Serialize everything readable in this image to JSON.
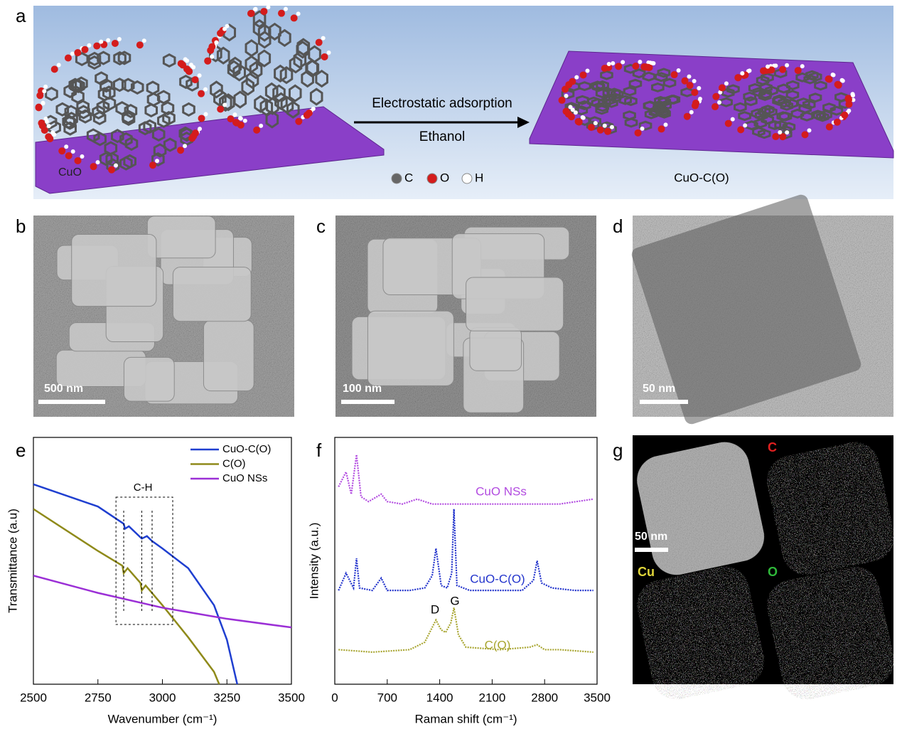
{
  "panels": [
    "a",
    "b",
    "c",
    "d",
    "e",
    "f",
    "g"
  ],
  "schematic": {
    "substrate_label": "CuO",
    "arrow_top": "Electrostatic adsorption",
    "arrow_bottom": "Ethanol",
    "atoms": [
      "C",
      "O",
      "H"
    ],
    "product_label": "CuO-C(O)"
  },
  "micrographs": [
    {
      "scale_bar": "500 nm"
    },
    {
      "scale_bar": "100 nm"
    },
    {
      "scale_bar": "50 nm"
    }
  ],
  "mapping": {
    "scale_bar": "50 nm",
    "elements": [
      "C",
      "Cu",
      "O"
    ]
  },
  "chart_data": [
    {
      "type": "line",
      "xlabel": "Wavenumber (cm⁻¹)",
      "ylabel": "Transmittance (a.u)",
      "xlim": [
        2500,
        3500
      ],
      "xticks": [
        2500,
        2750,
        3000,
        3250,
        3500
      ],
      "ylim": [
        0,
        100
      ],
      "annotation": {
        "text": "C-H",
        "range": [
          2820,
          3040
        ],
        "bands": [
          2850,
          2920,
          2960
        ]
      },
      "series": [
        {
          "name": "CuO-C(O)",
          "color": "#1f3fd0",
          "x": [
            2500,
            2750,
            2850,
            2855,
            2870,
            2920,
            2940,
            2960,
            3000,
            3100,
            3200,
            3250,
            3290
          ],
          "values": [
            81,
            72,
            65,
            63,
            64,
            59,
            60,
            58,
            55,
            47,
            32,
            18,
            0
          ]
        },
        {
          "name": "C(O)",
          "color": "#8f8a1a",
          "x": [
            2500,
            2750,
            2845,
            2850,
            2865,
            2915,
            2920,
            2935,
            3000,
            3100,
            3200,
            3220
          ],
          "values": [
            71,
            54,
            48,
            45,
            47,
            41,
            38,
            40,
            32,
            19,
            5,
            0
          ]
        },
        {
          "name": "CuO NSs",
          "color": "#9b2fd6",
          "x": [
            2500,
            2750,
            3000,
            3250,
            3500
          ],
          "values": [
            44,
            37,
            31,
            26.5,
            23
          ]
        }
      ]
    },
    {
      "type": "line",
      "xlabel": "Raman shift (cm⁻¹)",
      "ylabel": "Intensity (a.u.)",
      "xlim": [
        0,
        3500
      ],
      "xticks": [
        0,
        700,
        1400,
        2100,
        2800,
        3500
      ],
      "ylim": [
        0,
        100
      ],
      "peak_labels": [
        "D",
        "G"
      ],
      "series": [
        {
          "name": "CuO NSs",
          "color": "#b24be0",
          "x": [
            50,
            150,
            220,
            290,
            350,
            450,
            620,
            700,
            900,
            1100,
            1300,
            2000,
            3000,
            3450
          ],
          "values": [
            80,
            86,
            77,
            93,
            76,
            74,
            77,
            74,
            73,
            75,
            73,
            73,
            73,
            75
          ]
        },
        {
          "name": "CuO-C(O)",
          "color": "#2233cc",
          "x": [
            50,
            150,
            250,
            290,
            330,
            500,
            620,
            700,
            1000,
            1200,
            1300,
            1350,
            1420,
            1500,
            1560,
            1590,
            1630,
            1800,
            2500,
            2650,
            2700,
            2760,
            2900,
            3200,
            3450
          ],
          "values": [
            38,
            45,
            39,
            51,
            39,
            38,
            43,
            38,
            38,
            39,
            44,
            55,
            40,
            39,
            45,
            71,
            40,
            38,
            38,
            42,
            50,
            41,
            39,
            38,
            38
          ]
        },
        {
          "name": "C(O)",
          "color": "#a8a530",
          "x": [
            50,
            500,
            1000,
            1200,
            1300,
            1350,
            1420,
            1480,
            1550,
            1590,
            1650,
            1750,
            2200,
            2600,
            2700,
            2800,
            3000,
            3450
          ],
          "values": [
            14,
            13,
            14,
            17,
            23,
            26,
            22,
            21,
            25,
            31,
            20,
            15,
            14,
            15,
            16,
            14,
            14,
            13
          ]
        }
      ]
    }
  ]
}
